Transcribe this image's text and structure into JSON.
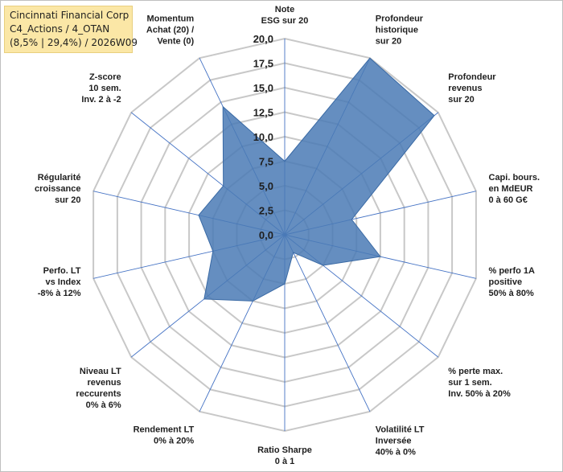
{
  "title_box": {
    "line1": "Cincinnati Financial Corp",
    "line2": "C4_Actions / 4_OTAN",
    "line3": "(8,5% | 29,4%) / 2026W09"
  },
  "colors": {
    "fill": "#4a7ab5",
    "stroke": "#3a6aa5",
    "grid": "#c8c8c8",
    "spoke": "#4472c4"
  },
  "chart_data": {
    "type": "radar",
    "title": "Cincinnati Financial Corp",
    "rlim": [
      0,
      20
    ],
    "ticks": [
      "0,0",
      "2,5",
      "5,0",
      "7,5",
      "10,0",
      "12,5",
      "15,0",
      "17,5",
      "20,0"
    ],
    "axes": [
      {
        "label": [
          "Note",
          "ESG sur 20"
        ],
        "value": 7.5
      },
      {
        "label": [
          "Profondeur",
          "historique",
          "sur 20"
        ],
        "value": 20.0
      },
      {
        "label": [
          "Profondeur",
          "revenus",
          "sur 20"
        ],
        "value": 19.5
      },
      {
        "label": [
          "Capi. bours.",
          "en MdEUR",
          "0 à 60 G€"
        ],
        "value": 7.0
      },
      {
        "label": [
          "% perfo 1A",
          "positive",
          "50% à 80%"
        ],
        "value": 10.0
      },
      {
        "label": [
          "% perte max.",
          "sur 1 sem.",
          "Inv. 50% à 20%"
        ],
        "value": 5.0
      },
      {
        "label": [
          "Volatilité LT",
          "Inversée",
          "40% à 0%"
        ],
        "value": 2.0
      },
      {
        "label": [
          "Ratio Sharpe",
          "0 à 1"
        ],
        "value": 5.0
      },
      {
        "label": [
          "Rendement LT",
          "0% à 20%"
        ],
        "value": 7.5
      },
      {
        "label": [
          "Niveau LT",
          "revenus",
          "reccurents",
          "0% à 6%"
        ],
        "value": 10.5
      },
      {
        "label": [
          "Perfo. LT",
          "vs Index",
          "-8% à 12%"
        ],
        "value": 7.5
      },
      {
        "label": [
          "Régularité",
          "croissance",
          "sur 20"
        ],
        "value": 9.0
      },
      {
        "label": [
          "Z-score",
          "10 sem.",
          "Inv. 2 à -2"
        ],
        "value": 8.0
      },
      {
        "label": [
          "Momentum",
          "Achat (20) /",
          "Vente (0)"
        ],
        "value": 14.5
      }
    ]
  }
}
